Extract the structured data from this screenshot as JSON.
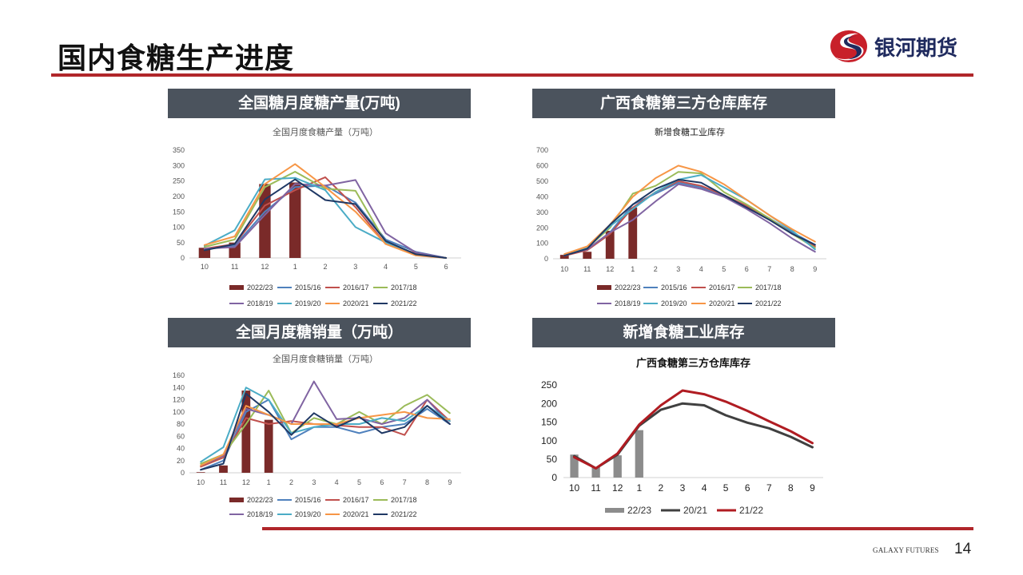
{
  "page": {
    "title": "国内食糖生产进度",
    "logo_text": "银河期货",
    "footer_tag": "GALAXY FUTURES",
    "page_number": "14"
  },
  "panels": {
    "p1_header": "全国糖月度糖产量(万吨)",
    "p2_header": "广西食糖第三方仓库库存",
    "p3_header": "全国月度糖销量（万吨）",
    "p4_header": "新增食糖工业库存"
  },
  "chart_data": [
    {
      "id": "c1",
      "type": "line",
      "title": "全国月度食糖产量（万吨）",
      "categories": [
        "10",
        "11",
        "12",
        "1",
        "2",
        "3",
        "4",
        "5",
        "6"
      ],
      "ylim": [
        0,
        350
      ],
      "yticks": [
        0,
        50,
        100,
        150,
        200,
        250,
        300,
        350
      ],
      "bar_series": {
        "name": "2022/23",
        "values": [
          33,
          50,
          240,
          245,
          null,
          null,
          null,
          null,
          null
        ]
      },
      "series": [
        {
          "name": "2015/16",
          "values": [
            28,
            40,
            150,
            230,
            235,
            180,
            60,
            20,
            0
          ]
        },
        {
          "name": "2016/17",
          "values": [
            30,
            45,
            170,
            220,
            262,
            165,
            45,
            15,
            0
          ]
        },
        {
          "name": "2017/18",
          "values": [
            36,
            60,
            230,
            280,
            225,
            218,
            50,
            12,
            0
          ]
        },
        {
          "name": "2018/19",
          "values": [
            30,
            35,
            140,
            240,
            235,
            253,
            80,
            18,
            0
          ]
        },
        {
          "name": "2019/20",
          "values": [
            40,
            90,
            255,
            260,
            220,
            100,
            50,
            10,
            0
          ]
        },
        {
          "name": "2020/21",
          "values": [
            42,
            70,
            240,
            305,
            230,
            150,
            45,
            8,
            0
          ]
        },
        {
          "name": "2021/22",
          "values": [
            25,
            45,
            190,
            255,
            188,
            175,
            55,
            12,
            0
          ]
        }
      ],
      "colors": {
        "2022/23": "#7a2a29",
        "2015/16": "#4f81bd",
        "2016/17": "#c0504d",
        "2017/18": "#9bbb59",
        "2018/19": "#8064a2",
        "2019/20": "#4bacc6",
        "2020/21": "#f79646",
        "2021/22": "#1f3864"
      },
      "grid": false,
      "legend_placement": "bottom"
    },
    {
      "id": "c2",
      "type": "line",
      "title": "新增食糖工业库存",
      "categories": [
        "10",
        "11",
        "12",
        "1",
        "2",
        "3",
        "4",
        "5",
        "6",
        "7",
        "8",
        "9"
      ],
      "ylim": [
        0,
        700
      ],
      "yticks": [
        0,
        100,
        200,
        300,
        400,
        500,
        600,
        700
      ],
      "bar_series": {
        "name": "2022/23",
        "values": [
          25,
          45,
          180,
          330,
          null,
          null,
          null,
          null,
          null,
          null,
          null,
          null
        ]
      },
      "series": [
        {
          "name": "2015/16",
          "values": [
            20,
            60,
            170,
            350,
            420,
            490,
            460,
            400,
            330,
            260,
            170,
            90
          ]
        },
        {
          "name": "2016/17",
          "values": [
            20,
            55,
            160,
            330,
            430,
            500,
            470,
            410,
            340,
            260,
            160,
            80
          ]
        },
        {
          "name": "2017/18",
          "values": [
            25,
            70,
            200,
            420,
            470,
            560,
            550,
            430,
            350,
            260,
            160,
            70
          ]
        },
        {
          "name": "2018/19",
          "values": [
            25,
            60,
            170,
            250,
            370,
            480,
            450,
            400,
            320,
            230,
            130,
            45
          ]
        },
        {
          "name": "2019/20",
          "values": [
            30,
            75,
            210,
            320,
            430,
            510,
            540,
            460,
            380,
            280,
            180,
            60
          ]
        },
        {
          "name": "2020/21",
          "values": [
            30,
            80,
            220,
            400,
            520,
            600,
            560,
            480,
            380,
            280,
            190,
            110
          ]
        },
        {
          "name": "2021/22",
          "values": [
            20,
            65,
            220,
            350,
            450,
            510,
            490,
            410,
            330,
            250,
            160,
            90
          ]
        }
      ],
      "colors": {
        "2022/23": "#7a2a29",
        "2015/16": "#4f81bd",
        "2016/17": "#c0504d",
        "2017/18": "#9bbb59",
        "2018/19": "#8064a2",
        "2019/20": "#4bacc6",
        "2020/21": "#f79646",
        "2021/22": "#1f3864"
      },
      "grid": false,
      "legend_placement": "bottom"
    },
    {
      "id": "c3",
      "type": "line",
      "title": "全国月度食糖销量（万吨）",
      "categories": [
        "10",
        "11",
        "12",
        "1",
        "2",
        "3",
        "4",
        "5",
        "6",
        "7",
        "8",
        "9"
      ],
      "ylim": [
        0,
        160
      ],
      "yticks": [
        0,
        20,
        40,
        60,
        80,
        100,
        120,
        140,
        160
      ],
      "bar_series": {
        "name": "2022/23",
        "values": [
          1,
          12,
          135,
          87,
          null,
          null,
          null,
          null,
          null,
          null,
          null,
          null
        ]
      },
      "series": [
        {
          "name": "2015/16",
          "values": [
            5,
            20,
            100,
            120,
            55,
            75,
            75,
            65,
            75,
            80,
            105,
            80
          ]
        },
        {
          "name": "2016/17",
          "values": [
            10,
            25,
            90,
            80,
            85,
            80,
            78,
            75,
            75,
            62,
            120,
            85
          ]
        },
        {
          "name": "2017/18",
          "values": [
            15,
            30,
            80,
            135,
            65,
            90,
            80,
            100,
            80,
            110,
            128,
            98
          ]
        },
        {
          "name": "2018/19",
          "values": [
            12,
            28,
            105,
            95,
            80,
            150,
            88,
            90,
            80,
            90,
            120,
            80
          ]
        },
        {
          "name": "2019/20",
          "values": [
            18,
            42,
            140,
            120,
            65,
            75,
            80,
            80,
            90,
            85,
            110,
            85
          ]
        },
        {
          "name": "2020/21",
          "values": [
            12,
            30,
            110,
            95,
            80,
            80,
            80,
            90,
            95,
            100,
            90,
            88
          ]
        },
        {
          "name": "2021/22",
          "values": [
            5,
            15,
            130,
            100,
            62,
            98,
            75,
            92,
            65,
            75,
            110,
            80
          ]
        }
      ],
      "colors": {
        "2022/23": "#7a2a29",
        "2015/16": "#4f81bd",
        "2016/17": "#c0504d",
        "2017/18": "#9bbb59",
        "2018/19": "#8064a2",
        "2019/20": "#4bacc6",
        "2020/21": "#f79646",
        "2021/22": "#1f3864"
      },
      "grid": false,
      "legend_placement": "bottom"
    },
    {
      "id": "c4",
      "type": "line",
      "title": "广西食糖第三方仓库库存",
      "categories": [
        "10",
        "11",
        "12",
        "1",
        "2",
        "3",
        "4",
        "5",
        "6",
        "7",
        "8",
        "9"
      ],
      "ylim": [
        0,
        250
      ],
      "yticks": [
        0,
        50,
        100,
        150,
        200,
        250
      ],
      "bar_series": {
        "name": "22/23",
        "values": [
          62,
          28,
          60,
          128,
          null,
          null,
          null,
          null,
          null,
          null,
          null,
          null
        ]
      },
      "series": [
        {
          "name": "20/21",
          "values": [
            58,
            25,
            62,
            140,
            183,
            200,
            195,
            168,
            148,
            133,
            110,
            82
          ]
        },
        {
          "name": "21/22",
          "values": [
            55,
            25,
            65,
            143,
            195,
            235,
            225,
            205,
            180,
            152,
            125,
            93
          ]
        }
      ],
      "colors": {
        "22/23": "#8c8c8c",
        "20/21": "#404040",
        "21/22": "#b01c22"
      },
      "grid": false,
      "legend_placement": "bottom"
    }
  ]
}
